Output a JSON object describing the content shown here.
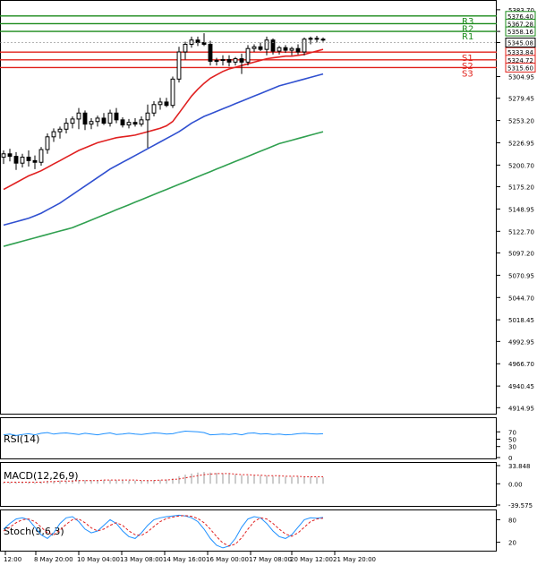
{
  "chart_data": {
    "type": "candlestick",
    "instrument_note": "H4 price chart with moving averages, pivot levels and oscillators",
    "price_axis_ticks": [
      5383.7,
      5358.16,
      5345.08,
      5304.95,
      5279.45,
      5253.2,
      5226.95,
      5200.7,
      5175.2,
      5148.95,
      5122.7,
      5097.2,
      5070.95,
      5044.7,
      5018.45,
      4992.95,
      4966.7,
      4940.45,
      4914.95
    ],
    "price_range": [
      4910.0,
      5392.0
    ],
    "time_labels": [
      "12:00",
      "8 May 20:00",
      "10 May 04:00",
      "13 May 08:00",
      "14 May 16:00",
      "16 May 00:00",
      "17 May 08:00",
      "20 May 12:00",
      "21 May 20:00"
    ],
    "levels": [
      {
        "name": "R3",
        "value": 5376.4,
        "color": "#1a8a1a"
      },
      {
        "name": "R2",
        "value": 5367.28,
        "color": "#1a8a1a"
      },
      {
        "name": "R1",
        "value": 5358.16,
        "color": "#1a8a1a"
      },
      {
        "name": "S1",
        "value": 5333.84,
        "color": "#e0201a"
      },
      {
        "name": "S2",
        "value": 5324.72,
        "color": "#e0201a"
      },
      {
        "name": "S3",
        "value": 5315.6,
        "color": "#e0201a"
      }
    ],
    "current_price": {
      "value": 5345.08,
      "label": "5345.08"
    },
    "level_labels": [
      "5376.40",
      "5367.28",
      "5358.16",
      "5333.84",
      "5324.72",
      "5315.60"
    ],
    "candles": [
      [
        5210,
        5218,
        5202,
        5214
      ],
      [
        5214,
        5220,
        5205,
        5211
      ],
      [
        5211,
        5216,
        5195,
        5203
      ],
      [
        5203,
        5214,
        5198,
        5210
      ],
      [
        5210,
        5218,
        5199,
        5206
      ],
      [
        5206,
        5212,
        5196,
        5204
      ],
      [
        5204,
        5222,
        5200,
        5219
      ],
      [
        5219,
        5238,
        5214,
        5234
      ],
      [
        5234,
        5244,
        5228,
        5240
      ],
      [
        5240,
        5246,
        5232,
        5243
      ],
      [
        5243,
        5256,
        5238,
        5250
      ],
      [
        5250,
        5258,
        5244,
        5255
      ],
      [
        5255,
        5268,
        5243,
        5262
      ],
      [
        5262,
        5265,
        5242,
        5249
      ],
      [
        5249,
        5256,
        5243,
        5252
      ],
      [
        5252,
        5259,
        5246,
        5256
      ],
      [
        5256,
        5262,
        5248,
        5250
      ],
      [
        5250,
        5266,
        5246,
        5262
      ],
      [
        5262,
        5268,
        5250,
        5254
      ],
      [
        5254,
        5257,
        5245,
        5248
      ],
      [
        5248,
        5255,
        5244,
        5251
      ],
      [
        5251,
        5256,
        5246,
        5249
      ],
      [
        5249,
        5258,
        5246,
        5254
      ],
      [
        5254,
        5272,
        5221,
        5262
      ],
      [
        5262,
        5276,
        5258,
        5272
      ],
      [
        5272,
        5280,
        5266,
        5275
      ],
      [
        5275,
        5280,
        5269,
        5271
      ],
      [
        5271,
        5305,
        5268,
        5302
      ],
      [
        5302,
        5340,
        5298,
        5334
      ],
      [
        5334,
        5346,
        5325,
        5343
      ],
      [
        5343,
        5352,
        5339,
        5348
      ],
      [
        5348,
        5352,
        5341,
        5345
      ],
      [
        5345,
        5356,
        5341,
        5343
      ],
      [
        5343,
        5347,
        5318,
        5323
      ],
      [
        5323,
        5327,
        5318,
        5324
      ],
      [
        5324,
        5330,
        5318,
        5325
      ],
      [
        5325,
        5330,
        5317,
        5322
      ],
      [
        5322,
        5328,
        5318,
        5326
      ],
      [
        5326,
        5332,
        5308,
        5322
      ],
      [
        5322,
        5342,
        5318,
        5338
      ],
      [
        5338,
        5343,
        5334,
        5340
      ],
      [
        5340,
        5345,
        5335,
        5337
      ],
      [
        5337,
        5352,
        5330,
        5348
      ],
      [
        5348,
        5350,
        5331,
        5335
      ],
      [
        5335,
        5341,
        5331,
        5339
      ],
      [
        5339,
        5342,
        5333,
        5336
      ],
      [
        5336,
        5340,
        5330,
        5338
      ],
      [
        5338,
        5343,
        5331,
        5334
      ],
      [
        5334,
        5351,
        5330,
        5349
      ],
      [
        5349,
        5352,
        5343,
        5350
      ],
      [
        5350,
        5353,
        5345,
        5349
      ],
      [
        5349,
        5351,
        5346,
        5348
      ]
    ],
    "ma_series": [
      {
        "name": "MA fast",
        "color": "#e02020",
        "values": [
          5172,
          5176,
          5180,
          5184,
          5188,
          5191,
          5194,
          5198,
          5202,
          5206,
          5210,
          5214,
          5218,
          5221,
          5224,
          5227,
          5229,
          5231,
          5233,
          5234,
          5235,
          5236,
          5238,
          5240,
          5242,
          5244,
          5247,
          5252,
          5262,
          5272,
          5282,
          5290,
          5297,
          5303,
          5307,
          5311,
          5314,
          5316,
          5318,
          5320,
          5322,
          5324,
          5326,
          5327,
          5328,
          5329,
          5329,
          5330,
          5331,
          5333,
          5335,
          5337
        ]
      },
      {
        "name": "MA medium",
        "color": "#3050d0",
        "values": [
          5130,
          5132,
          5134,
          5136,
          5138,
          5141,
          5144,
          5148,
          5152,
          5156,
          5161,
          5166,
          5171,
          5176,
          5181,
          5186,
          5191,
          5196,
          5200,
          5204,
          5208,
          5212,
          5216,
          5220,
          5224,
          5228,
          5232,
          5236,
          5240,
          5245,
          5250,
          5254,
          5258,
          5261,
          5264,
          5267,
          5270,
          5273,
          5276,
          5279,
          5282,
          5285,
          5288,
          5291,
          5294,
          5296,
          5298,
          5300,
          5302,
          5304,
          5306,
          5308
        ]
      },
      {
        "name": "MA slow",
        "color": "#30a050",
        "values": [
          5105,
          5107,
          5109,
          5111,
          5113,
          5115,
          5117,
          5119,
          5121,
          5123,
          5125,
          5127,
          5130,
          5133,
          5136,
          5139,
          5142,
          5145,
          5148,
          5151,
          5154,
          5157,
          5160,
          5163,
          5166,
          5169,
          5172,
          5175,
          5178,
          5181,
          5184,
          5187,
          5190,
          5193,
          5196,
          5199,
          5202,
          5205,
          5208,
          5211,
          5214,
          5217,
          5220,
          5223,
          5226,
          5228,
          5230,
          5232,
          5234,
          5236,
          5238,
          5240
        ]
      }
    ],
    "rsi": {
      "label": "RSI(14)",
      "ticks": [
        70,
        50,
        30,
        0
      ],
      "range": [
        0,
        100
      ],
      "values": [
        62,
        64,
        60,
        63,
        65,
        62,
        66,
        68,
        64,
        66,
        67,
        65,
        63,
        66,
        64,
        62,
        65,
        67,
        63,
        64,
        66,
        64,
        63,
        65,
        67,
        66,
        64,
        65,
        69,
        72,
        71,
        70,
        68,
        62,
        63,
        64,
        63,
        65,
        62,
        66,
        67,
        64,
        65,
        63,
        64,
        62,
        63,
        65,
        66,
        65,
        64,
        65
      ]
    },
    "macd": {
      "label": "MACD(12,26,9)",
      "ticks": [
        33.848,
        0.0,
        -39.575
      ],
      "range": [
        -39.575,
        33.848
      ],
      "values": [
        2,
        3,
        3,
        3,
        3,
        3,
        4,
        5,
        5,
        6,
        6,
        7,
        7,
        7,
        7,
        7,
        7,
        7,
        7,
        7,
        6,
        6,
        6,
        6,
        7,
        7,
        8,
        10,
        14,
        17,
        19,
        21,
        22,
        21,
        20,
        19,
        18,
        17,
        16,
        15,
        15,
        15,
        15,
        14,
        14,
        13,
        13,
        13,
        13,
        13,
        12,
        12
      ],
      "signal": [
        3,
        3,
        3,
        3,
        3,
        3,
        3,
        4,
        4,
        5,
        5,
        5,
        6,
        6,
        6,
        6,
        7,
        7,
        7,
        7,
        7,
        7,
        6,
        6,
        6,
        7,
        7,
        8,
        9,
        11,
        13,
        15,
        17,
        18,
        19,
        19,
        19,
        18,
        17,
        17,
        16,
        16,
        15,
        15,
        15,
        14,
        14,
        14,
        13,
        13,
        13,
        13
      ]
    },
    "stoch": {
      "label": "Stoch(9,6,3)",
      "ticks": [
        80,
        20
      ],
      "range": [
        0,
        100
      ],
      "k": [
        55,
        70,
        82,
        85,
        80,
        60,
        40,
        30,
        45,
        70,
        85,
        88,
        75,
        55,
        45,
        50,
        65,
        80,
        70,
        50,
        35,
        30,
        45,
        65,
        80,
        85,
        88,
        90,
        92,
        90,
        85,
        75,
        55,
        30,
        12,
        5,
        10,
        30,
        60,
        82,
        88,
        85,
        70,
        50,
        35,
        30,
        40,
        60,
        80,
        85,
        84,
        86
      ],
      "d": [
        50,
        60,
        72,
        80,
        82,
        75,
        60,
        45,
        40,
        52,
        68,
        80,
        82,
        72,
        58,
        50,
        55,
        65,
        72,
        65,
        50,
        40,
        38,
        48,
        62,
        75,
        83,
        87,
        90,
        91,
        89,
        83,
        72,
        55,
        35,
        18,
        10,
        15,
        32,
        55,
        75,
        85,
        82,
        70,
        55,
        42,
        36,
        45,
        60,
        75,
        82,
        84
      ]
    }
  }
}
